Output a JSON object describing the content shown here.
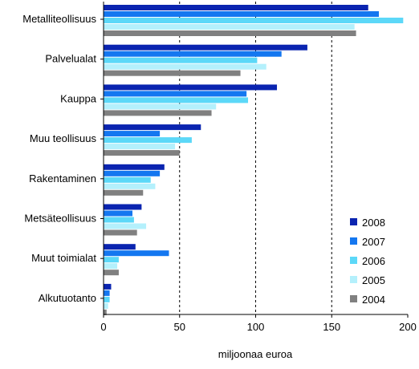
{
  "chart_data": {
    "type": "bar",
    "orientation": "horizontal",
    "title": "",
    "xlabel": "miljoonaa euroa",
    "ylabel": "",
    "xlim": [
      0,
      200
    ],
    "xticks": [
      0,
      50,
      100,
      150,
      200
    ],
    "grid": "vertical dashed at 50, 100, 150",
    "legend_position": "bottom-right",
    "categories": [
      "Metalliteollisuus",
      "Palvelualat",
      "Kauppa",
      "Muu teollisuus",
      "Rakentaminen",
      "Metsäteollisuus",
      "Muut toimialat",
      "Alkutuotanto"
    ],
    "series": [
      {
        "name": "2008",
        "color": "#0a24b0",
        "values": [
          174,
          134,
          114,
          64,
          40,
          25,
          21,
          5
        ]
      },
      {
        "name": "2007",
        "color": "#1477f0",
        "values": [
          181,
          117,
          94,
          37,
          37,
          19,
          43,
          4
        ]
      },
      {
        "name": "2006",
        "color": "#5cd8f8",
        "values": [
          197,
          101,
          95,
          58,
          31,
          20,
          10,
          4
        ]
      },
      {
        "name": "2005",
        "color": "#b4f0fc",
        "values": [
          165,
          107,
          74,
          47,
          34,
          28,
          9,
          3
        ]
      },
      {
        "name": "2004",
        "color": "#808080",
        "values": [
          166,
          90,
          71,
          50,
          26,
          22,
          10,
          2
        ]
      }
    ]
  }
}
